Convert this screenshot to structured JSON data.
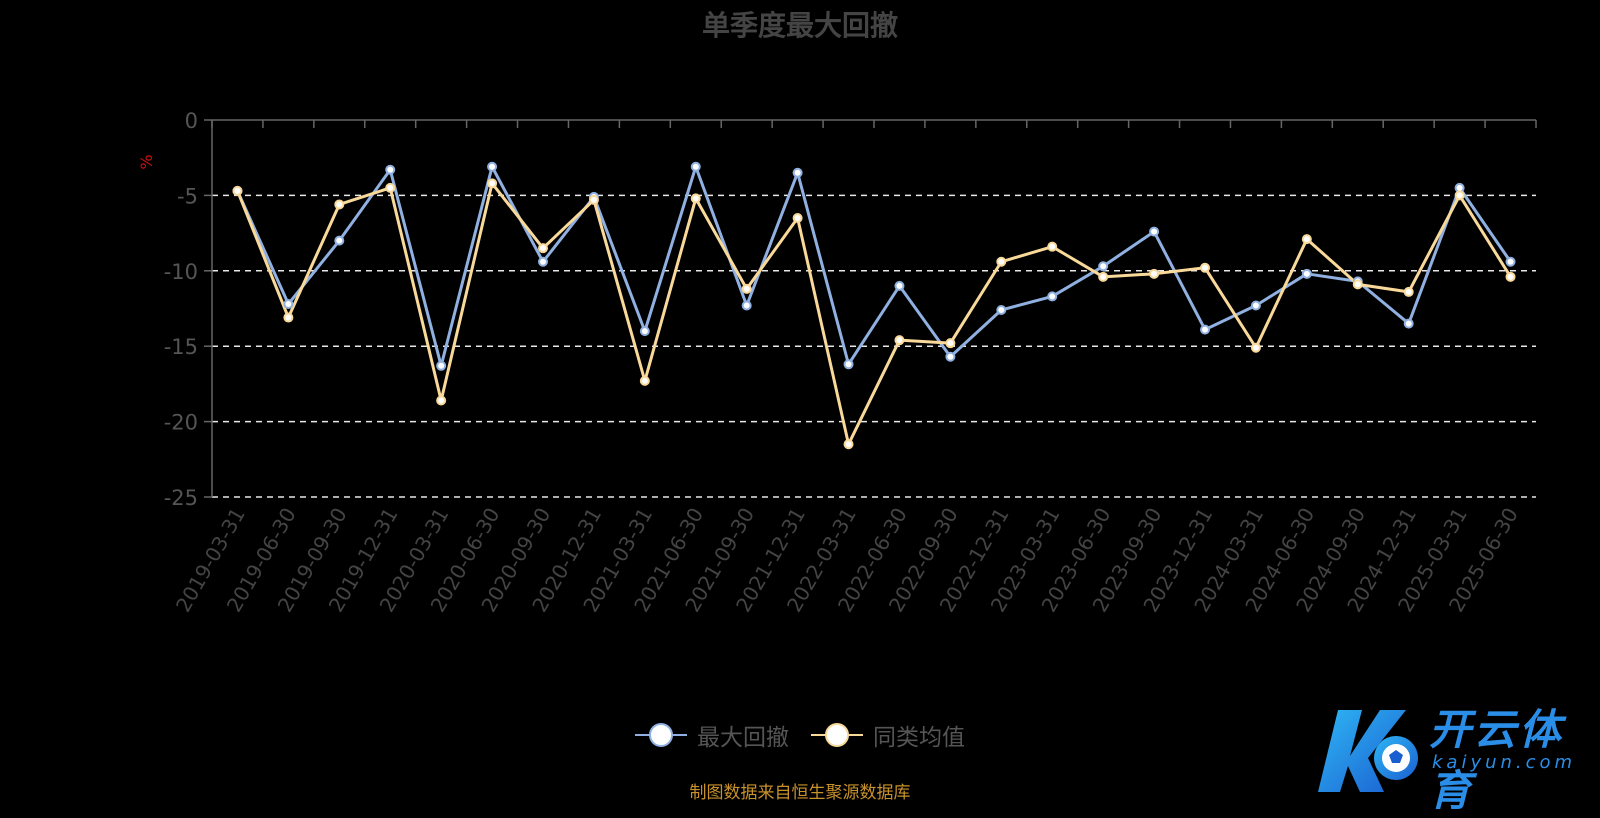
{
  "chart_data": {
    "type": "line",
    "title": "单季度最大回撤",
    "ylabel": "%",
    "ylim": [
      -25,
      0
    ],
    "yticks": [
      0,
      -5,
      -10,
      -15,
      -20,
      -25
    ],
    "ytick_labels": [
      "0",
      "-5",
      "-10",
      "-15",
      "-20",
      "-25"
    ],
    "grid": "dashed horizontal",
    "legend_position": "bottom-center",
    "categories": [
      "2019-03-31",
      "2019-06-30",
      "2019-09-30",
      "2019-12-31",
      "2020-03-31",
      "2020-06-30",
      "2020-09-30",
      "2020-12-31",
      "2021-03-31",
      "2021-06-30",
      "2021-09-30",
      "2021-12-31",
      "2022-03-31",
      "2022-06-30",
      "2022-09-30",
      "2022-12-31",
      "2023-03-31",
      "2023-06-30",
      "2023-09-30",
      "2023-12-31",
      "2024-03-31",
      "2024-06-30",
      "2024-09-30",
      "2024-12-31",
      "2025-03-31",
      "2025-06-30"
    ],
    "series": [
      {
        "name": "最大回撤",
        "color": "#8fb0e0",
        "values": [
          -4.7,
          -12.2,
          -8.0,
          -3.3,
          -16.3,
          -3.1,
          -9.4,
          -5.1,
          -14.0,
          -3.1,
          -12.3,
          -3.5,
          -16.2,
          -11.0,
          -15.7,
          -12.6,
          -11.7,
          -9.7,
          -7.4,
          -13.9,
          -12.3,
          -10.2,
          -10.7,
          -13.5,
          -4.5,
          -9.4
        ]
      },
      {
        "name": "同类均值",
        "color": "#f9d99a",
        "values": [
          -4.7,
          -13.1,
          -5.6,
          -4.5,
          -18.6,
          -4.2,
          -8.5,
          -5.3,
          -17.3,
          -5.2,
          -11.2,
          -6.5,
          -21.5,
          -14.6,
          -14.8,
          -9.4,
          -8.4,
          -10.4,
          -10.2,
          -9.8,
          -15.1,
          -7.9,
          -10.9,
          -11.4,
          -5.0,
          -10.4
        ]
      }
    ]
  },
  "legend": [
    {
      "label": "最大回撤",
      "color": "#8fb0e0"
    },
    {
      "label": "同类均值",
      "color": "#f9d99a"
    }
  ],
  "source_note": "制图数据来自恒生聚源数据库",
  "watermark": {
    "text": "开云体育",
    "sub": "kaiyun.com",
    "color": "#2a8ee8"
  }
}
